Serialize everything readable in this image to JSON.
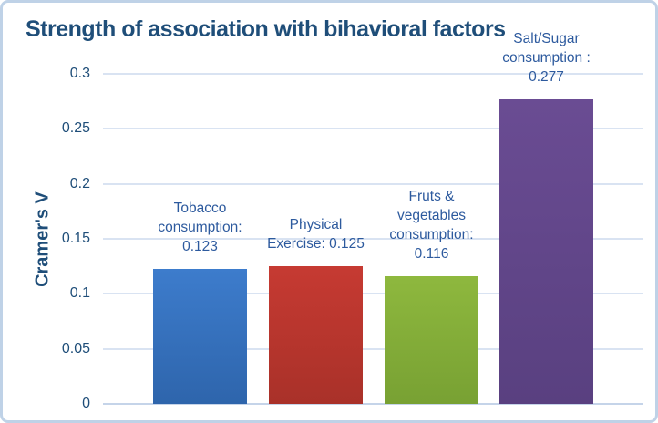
{
  "chart_data": {
    "type": "bar",
    "title": "Strength of association with bihavioral factors",
    "xlabel": "",
    "ylabel": "Cramer's V",
    "ylim": [
      0,
      0.3
    ],
    "yticks": [
      0,
      0.05,
      0.1,
      0.15,
      0.2,
      0.25,
      0.3
    ],
    "ytick_labels": [
      "0",
      "0.05",
      "0.1",
      "0.15",
      "0.2",
      "0.25",
      "0.3"
    ],
    "grid": true,
    "legend_position": "none",
    "categories": [
      "Tobacco consumption",
      "Physical Exercise",
      "Fruts & vegetables consumption",
      "Salt/Sugar consumption"
    ],
    "values": [
      0.123,
      0.125,
      0.116,
      0.277
    ],
    "bars": [
      {
        "id": "tobacco-consumption",
        "value": 0.123,
        "label_lines": [
          "Tobacco",
          "consumption:",
          "0.123"
        ],
        "color_top": "#3d7ccc",
        "color_bottom": "#2e65ac"
      },
      {
        "id": "physical-exercise",
        "value": 0.125,
        "label_lines": [
          "Physical",
          "Exercise: 0.125"
        ],
        "color_top": "#c63a32",
        "color_bottom": "#a93129"
      },
      {
        "id": "fruts-vegetables-consumption",
        "value": 0.116,
        "label_lines": [
          "Fruts &",
          "vegetables",
          "consumption:",
          "0.116"
        ],
        "color_top": "#8eb83e",
        "color_bottom": "#78a133"
      },
      {
        "id": "salt-sugar-consumption",
        "value": 0.277,
        "label_lines": [
          "Salt/Sugar",
          "consumption :",
          "0.277"
        ],
        "color_top": "#6a4c93",
        "color_bottom": "#594080"
      }
    ],
    "text_colors": {
      "title": "#1F4E79",
      "axis": "#1F4E79",
      "bar_labels": "#2d5a9e"
    }
  }
}
